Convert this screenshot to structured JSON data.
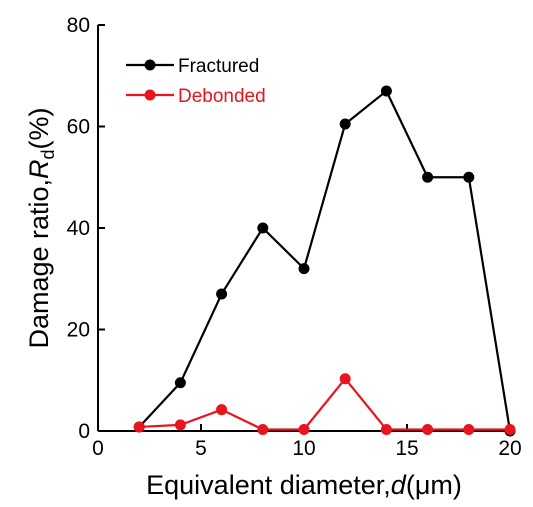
{
  "chart_data": {
    "type": "line",
    "x": [
      2,
      4,
      6,
      8,
      10,
      12,
      14,
      16,
      18,
      20
    ],
    "series": [
      {
        "name": "Fractured",
        "color": "#000000",
        "values": [
          0.8,
          9.5,
          27,
          40,
          32,
          60.5,
          67,
          50,
          50,
          0
        ]
      },
      {
        "name": "Debonded",
        "color": "#e8141e",
        "values": [
          0.8,
          1.2,
          4.2,
          0.3,
          0.3,
          10.3,
          0.3,
          0.3,
          0.3,
          0.3
        ]
      }
    ],
    "xlim": [
      0,
      20
    ],
    "ylim": [
      0,
      80
    ],
    "xticks": [
      0,
      5,
      10,
      15,
      20
    ],
    "yticks": [
      0,
      20,
      40,
      60,
      80
    ],
    "xlabel": "Equivalent diameter,",
    "xlabel_italic": "d",
    "xlabel_unit": "(μm)",
    "ylabel": "Damage ratio,",
    "ylabel_italic": "R",
    "ylabel_subscript": "d",
    "ylabel_unit": "(%)",
    "grid": false,
    "legend_position": "top-left"
  }
}
